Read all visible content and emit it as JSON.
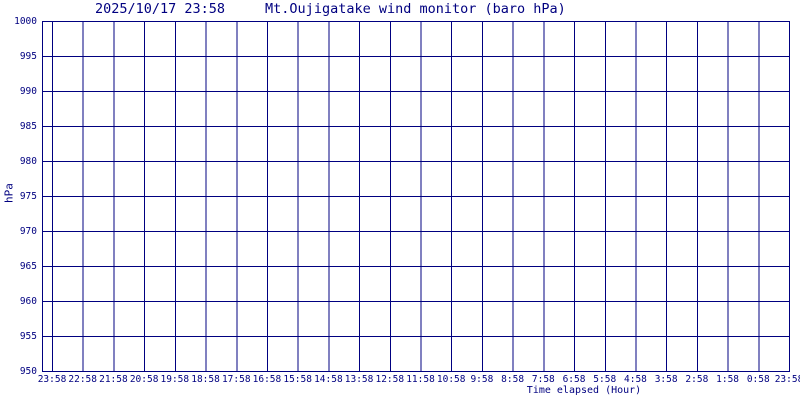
{
  "title": {
    "datetime": "2025/10/17 23:58",
    "text": "Mt.Oujigatake wind monitor (baro hPa)"
  },
  "chart_data": {
    "type": "line",
    "title": "2025/10/17 23:58   Mt.Oujigatake wind monitor (baro hPa)",
    "xlabel": "Time elapsed (Hour)",
    "ylabel": "hPa",
    "ylim": [
      950,
      1000
    ],
    "y_tick_step": 5,
    "y_ticks": [
      1000,
      995,
      990,
      985,
      980,
      975,
      970,
      965,
      960,
      955,
      950
    ],
    "x_ticks": [
      "23:58",
      "22:58",
      "21:58",
      "20:58",
      "19:58",
      "18:58",
      "17:58",
      "16:58",
      "15:58",
      "14:58",
      "13:58",
      "12:58",
      "11:58",
      "10:58",
      "9:58",
      "8:58",
      "7:58",
      "6:58",
      "5:58",
      "4:58",
      "3:58",
      "2:58",
      "1:58",
      "0:58",
      "23:58"
    ],
    "x_tick_interval_hours": 1,
    "grid": "on",
    "legend": "none",
    "series": [],
    "note": "no data curve is plotted; chart grid is empty"
  },
  "colors": {
    "axis": "#000080",
    "grid": "#000080",
    "text": "#000080",
    "background": "#ffffff"
  }
}
